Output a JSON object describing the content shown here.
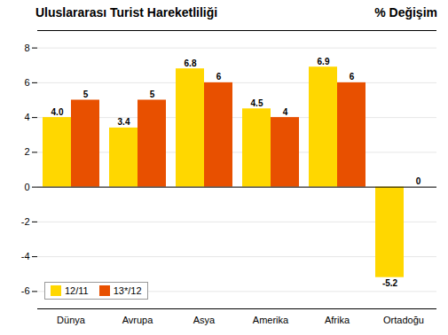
{
  "chart_data": {
    "type": "bar",
    "title": "Uluslararası Turist Hareketliliği",
    "subtitle": "% Değişim",
    "categories": [
      "Dünya",
      "Avrupa",
      "Asya",
      "Amerika",
      "Afrika",
      "Ortadoğu"
    ],
    "series": [
      {
        "name": "12/11",
        "color": "#FFD700",
        "values": [
          4.0,
          3.4,
          6.8,
          4.5,
          6.9,
          -5.2
        ],
        "value_labels": [
          "4.0",
          "3.4",
          "6.8",
          "4.5",
          "6.9",
          "-5.2"
        ]
      },
      {
        "name": "13*/12",
        "color": "#E85000",
        "values": [
          5,
          5,
          6,
          4,
          6,
          0
        ]
      }
    ],
    "ylim": [
      -7,
      9
    ],
    "yticks": [
      -6,
      -4,
      -2,
      0,
      2,
      4,
      6,
      8
    ],
    "grid": true,
    "legend": "lower left",
    "data_labels": true
  }
}
